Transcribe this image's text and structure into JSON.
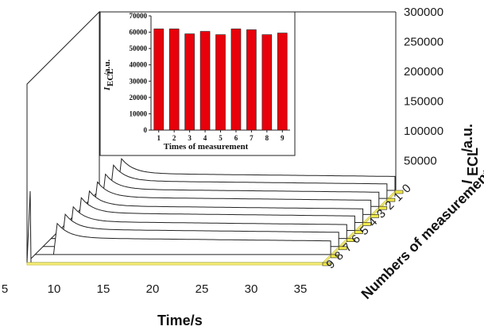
{
  "chart_data": [
    {
      "type": "line",
      "title": "",
      "xlabel": "Time/s",
      "ylabel": "I_ECL/a.u.",
      "zlabel": "Numbers of measurement",
      "x_ticks": [
        "5",
        "10",
        "15",
        "20",
        "25",
        "30",
        "35"
      ],
      "y_ticks": [
        "50000",
        "100000",
        "150000",
        "200000",
        "250000",
        "300000"
      ],
      "z_ticks": [
        "0",
        "1",
        "2",
        "3",
        "4",
        "5",
        "6",
        "7",
        "8",
        "9"
      ],
      "xlim": [
        5,
        35
      ],
      "ylim": [
        0,
        300000
      ],
      "series": [
        {
          "peak_time": 7.0,
          "peak": 58000,
          "plateau": 28000
        },
        {
          "peak_time": 7.0,
          "peak": 60000,
          "plateau": 29000
        },
        {
          "peak_time": 7.0,
          "peak": 59000,
          "plateau": 28500
        },
        {
          "peak_time": 7.0,
          "peak": 61000,
          "plateau": 29500
        },
        {
          "peak_time": 7.0,
          "peak": 58500,
          "plateau": 28000
        },
        {
          "peak_time": 7.0,
          "peak": 60500,
          "plateau": 29000
        },
        {
          "peak_time": 7.0,
          "peak": 60000,
          "plateau": 29000
        },
        {
          "peak_time": 7.0,
          "peak": 62000,
          "plateau": 29500
        },
        {
          "peak_time": 7.0,
          "peak": 59000,
          "plateau": 28500
        }
      ]
    },
    {
      "type": "bar",
      "title": "",
      "xlabel": "Times of measurement",
      "ylabel": "I_ECL/a.u.",
      "categories": [
        "1",
        "2",
        "3",
        "4",
        "5",
        "6",
        "7",
        "8",
        "9"
      ],
      "values": [
        62000,
        62000,
        59000,
        60500,
        58500,
        62000,
        61500,
        58500,
        59500
      ],
      "ylim": [
        0,
        70000
      ],
      "y_ticks": [
        "0",
        "10000",
        "20000",
        "30000",
        "40000",
        "50000",
        "60000",
        "70000"
      ],
      "bar_color": "#e8000b"
    }
  ],
  "labels": {
    "main_y_label_I": "I",
    "main_y_label_sub": "ECL",
    "main_y_label_unit": "/a.u.",
    "inset_y_label_I": "I",
    "inset_y_label_sub": "ECL",
    "inset_y_label_unit": "/a.u."
  }
}
